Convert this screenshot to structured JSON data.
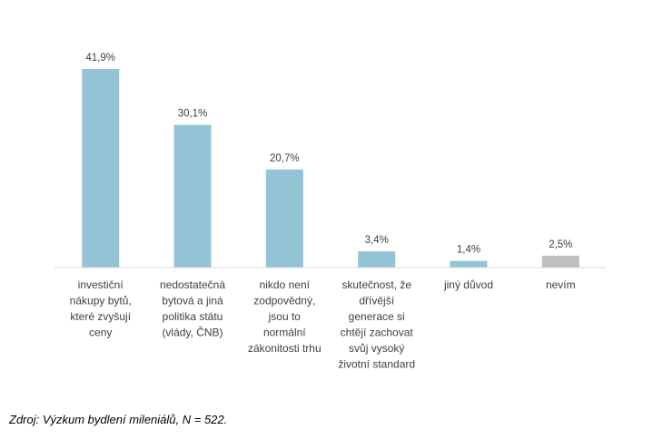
{
  "chart_data": {
    "type": "bar",
    "categories": [
      [
        "investiční",
        "nákupy bytů,",
        "které zvyšují",
        "ceny"
      ],
      [
        "nedostatečná",
        "bytová a jiná",
        "politika státu",
        "(vlády, ČNB)"
      ],
      [
        "nikdo není",
        "zodpovědný,",
        "jsou to",
        "normální",
        "zákonitosti trhu"
      ],
      [
        "skutečnost, že",
        "dřívější",
        "generace si",
        "chtějí zachovat",
        "svůj vysoký",
        "životní standard"
      ],
      [
        "jiný důvod"
      ],
      [
        "nevím"
      ]
    ],
    "values": [
      41.9,
      30.1,
      20.7,
      3.4,
      1.4,
      2.5
    ],
    "data_labels": [
      "41,9%",
      "30,1%",
      "20,7%",
      "3,4%",
      "1,4%",
      "2,5%"
    ],
    "bar_colors": [
      "#92C4D6",
      "#92C4D6",
      "#92C4D6",
      "#92C4D6",
      "#92C4D6",
      "#BFBFBF"
    ],
    "ylim": [
      0,
      41.9
    ],
    "grid": false,
    "legend": "none"
  },
  "source": "Zdroj: Výzkum bydlení mileniálů, N = 522."
}
